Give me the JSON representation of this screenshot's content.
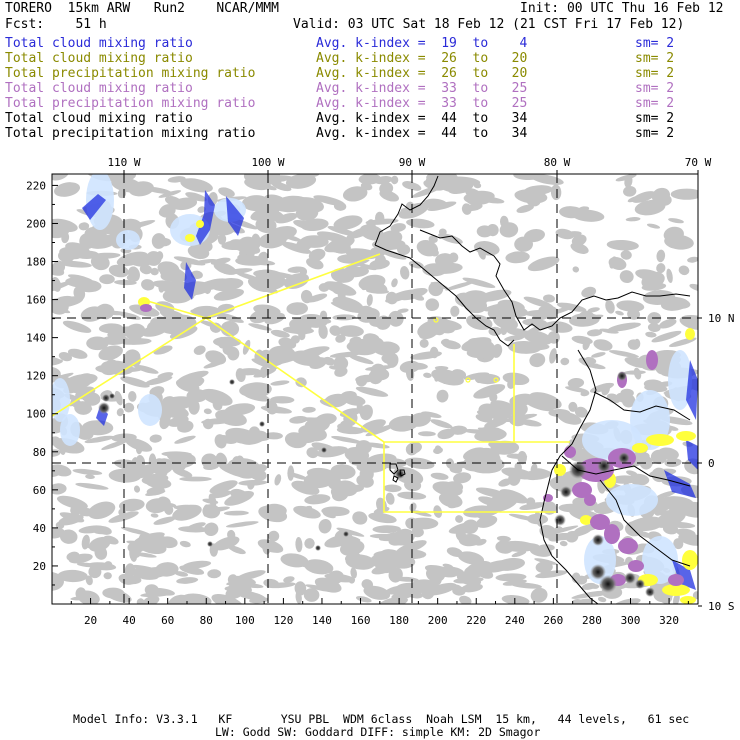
{
  "header": {
    "model": "TORERO  15km ARW   Run2    NCAR/MMM",
    "init": "Init: 00 UTC Thu 16 Feb 12",
    "fcst": "Fcst:    51 h",
    "valid": "Valid: 03 UTC Sat 18 Feb 12 (21 CST Fri 17 Feb 12)"
  },
  "legend": [
    {
      "field": "Total cloud mixing ratio",
      "index": "Avg. k-index =  19  to    4",
      "sm": "sm= 2",
      "color": "#2a2ad8"
    },
    {
      "field": "Total cloud mixing ratio",
      "index": "Avg. k-index =  26  to   20",
      "sm": "sm= 2",
      "color": "#8a8a00"
    },
    {
      "field": "Total precipitation mixing ratio",
      "index": "Avg. k-index =  26  to   20",
      "sm": "sm= 2",
      "color": "#8a8a00"
    },
    {
      "field": "Total cloud mixing ratio",
      "index": "Avg. k-index =  33  to   25",
      "sm": "sm= 2",
      "color": "#b070c0"
    },
    {
      "field": "Total precipitation mixing ratio",
      "index": "Avg. k-index =  33  to   25",
      "sm": "sm= 2",
      "color": "#b070c0"
    },
    {
      "field": "Total cloud mixing ratio",
      "index": "Avg. k-index =  44  to   34",
      "sm": "sm= 2",
      "color": "#000000"
    },
    {
      "field": "Total precipitation mixing ratio",
      "index": "Avg. k-index =  44  to   34",
      "sm": "sm= 2",
      "color": "#000000"
    }
  ],
  "map": {
    "top_lon_labels": [
      "110 W",
      "100 W",
      "90 W",
      "80 W",
      "70 W"
    ],
    "right_lat_labels": [
      "10 N",
      "0",
      "10 S"
    ],
    "y_ticks": [
      "220",
      "200",
      "180",
      "160",
      "140",
      "120",
      "100",
      "80",
      "60",
      "40",
      "20"
    ],
    "x_ticks": [
      "20",
      "40",
      "60",
      "80",
      "100",
      "120",
      "140",
      "160",
      "180",
      "200",
      "220",
      "240",
      "260",
      "280",
      "300",
      "320"
    ],
    "colors": {
      "cloud": "#c4c4c4",
      "land_line": "#000000",
      "yellow": "#ffff3c",
      "purple": "#b070c0",
      "blue": "#2030e0",
      "lightblue": "#cfe4ff",
      "track": "#ffff40"
    }
  },
  "footer": {
    "line1": "Model Info: V3.3.1   KF       YSU PBL  WDM 6class  Noah LSM  15 km,   44 levels,   61 sec",
    "line2": "LW: Godd SW: Goddard DIFF: simple KM: 2D Smagor"
  }
}
